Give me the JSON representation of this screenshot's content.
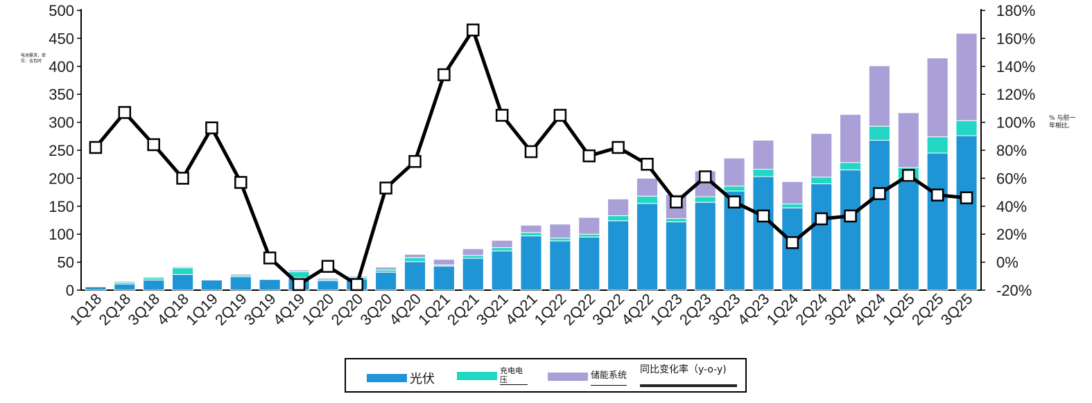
{
  "chart_data": {
    "type": "bar",
    "stacked": true,
    "title": "",
    "ylabel": "电池需求，单位：吉瓦时",
    "y2label": "% 与前一年相比,",
    "xlabel": "",
    "categories": [
      "1Q18",
      "2Q18",
      "3Q18",
      "4Q18",
      "1Q19",
      "2Q19",
      "3Q19",
      "4Q19",
      "1Q20",
      "2Q20",
      "3Q20",
      "4Q20",
      "1Q21",
      "2Q21",
      "3Q21",
      "4Q21",
      "1Q22",
      "2Q22",
      "3Q22",
      "4Q22",
      "1Q23",
      "2Q23",
      "3Q23",
      "4Q23",
      "1Q24",
      "2Q24",
      "3Q24",
      "4Q24",
      "1Q25",
      "2Q25",
      "3Q25"
    ],
    "ylim": [
      0,
      500
    ],
    "yticks": [
      "0",
      "50",
      "100",
      "150",
      "200",
      "250",
      "300",
      "350",
      "400",
      "450",
      "500"
    ],
    "y2lim": [
      -20,
      180
    ],
    "y2ticks": [
      "-20%",
      "0%",
      "20%",
      "40%",
      "60%",
      "80%",
      "100%",
      "120%",
      "140%",
      "160%",
      "180%"
    ],
    "series": [
      {
        "name": "光伏",
        "kind": "bar",
        "color": "#2095d6",
        "values": [
          6,
          11,
          18,
          28,
          18,
          24,
          19,
          22,
          17,
          20,
          32,
          51,
          43,
          57,
          70,
          97,
          88,
          95,
          124,
          155,
          122,
          157,
          177,
          203,
          147,
          190,
          215,
          268,
          194,
          245,
          276
        ]
      },
      {
        "name": "充电电压",
        "kind": "bar",
        "color": "#22d7c3",
        "values": [
          1,
          3,
          4,
          12,
          0,
          3,
          0,
          11,
          3,
          3,
          4,
          7,
          2,
          5,
          6,
          6,
          5,
          5,
          9,
          13,
          6,
          10,
          9,
          13,
          7,
          12,
          13,
          25,
          25,
          29,
          27
        ]
      },
      {
        "name": "储能系统",
        "kind": "bar",
        "color": "#ab9fd8",
        "values": [
          0,
          2,
          2,
          2,
          0,
          2,
          0,
          3,
          2,
          2,
          5,
          6,
          10,
          12,
          13,
          13,
          25,
          30,
          30,
          32,
          43,
          46,
          50,
          52,
          40,
          78,
          86,
          108,
          98,
          141,
          156
        ]
      },
      {
        "name": "同比变化率（y-o-y)",
        "kind": "line",
        "axis": "right",
        "color": "#000000",
        "values": [
          82,
          107,
          84,
          60,
          96,
          57,
          3,
          -16,
          -3,
          -16,
          53,
          72,
          134,
          166,
          105,
          79,
          105,
          76,
          82,
          70,
          43,
          61,
          43,
          33,
          14,
          31,
          33,
          49,
          62,
          48,
          46
        ]
      }
    ],
    "legend": "bottom-center"
  }
}
